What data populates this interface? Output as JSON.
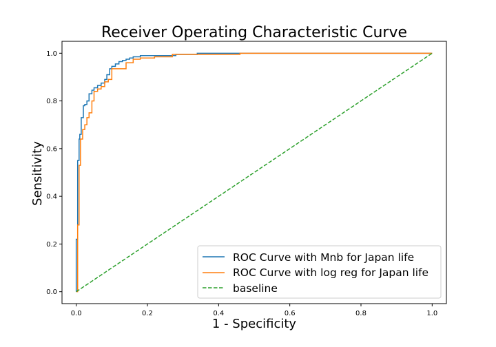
{
  "chart_data": {
    "type": "line",
    "title": "Receiver Operating Characteristic Curve",
    "xlabel": "1 - Specificity",
    "ylabel": "Sensitivity",
    "xlim": [
      -0.04,
      1.04
    ],
    "ylim": [
      -0.05,
      1.05
    ],
    "xticks": [
      0.0,
      0.2,
      0.4,
      0.6,
      0.8,
      1.0
    ],
    "xtick_labels": [
      "0.0",
      "0.2",
      "0.4",
      "0.6",
      "0.8",
      "1.0"
    ],
    "yticks": [
      0.0,
      0.2,
      0.4,
      0.6,
      0.8,
      1.0
    ],
    "ytick_labels": [
      "0.0",
      "0.2",
      "0.4",
      "0.6",
      "0.8",
      "1.0"
    ],
    "grid": false,
    "legend_position": "lower-right",
    "series": [
      {
        "name": "ROC Curve with Mnb for Japan life",
        "color": "#1f77b4",
        "dash": "solid",
        "x": [
          0.0,
          0.0,
          0.004,
          0.004,
          0.008,
          0.008,
          0.01,
          0.01,
          0.014,
          0.014,
          0.02,
          0.02,
          0.024,
          0.024,
          0.03,
          0.03,
          0.036,
          0.036,
          0.044,
          0.044,
          0.05,
          0.05,
          0.06,
          0.06,
          0.07,
          0.07,
          0.08,
          0.08,
          0.086,
          0.086,
          0.094,
          0.094,
          0.1,
          0.1,
          0.11,
          0.11,
          0.12,
          0.12,
          0.13,
          0.13,
          0.14,
          0.14,
          0.15,
          0.15,
          0.16,
          0.16,
          0.18,
          0.18,
          0.22,
          0.22,
          0.28,
          0.28,
          0.34,
          0.34,
          0.4,
          0.4,
          0.46,
          0.46,
          1.0
        ],
        "y": [
          0.0,
          0.22,
          0.22,
          0.55,
          0.55,
          0.64,
          0.64,
          0.66,
          0.66,
          0.73,
          0.73,
          0.78,
          0.78,
          0.785,
          0.785,
          0.8,
          0.8,
          0.83,
          0.83,
          0.845,
          0.845,
          0.855,
          0.855,
          0.865,
          0.865,
          0.875,
          0.875,
          0.89,
          0.89,
          0.91,
          0.91,
          0.935,
          0.935,
          0.945,
          0.945,
          0.955,
          0.955,
          0.965,
          0.965,
          0.97,
          0.97,
          0.975,
          0.975,
          0.98,
          0.98,
          0.985,
          0.985,
          0.99,
          0.99,
          0.99,
          0.99,
          0.995,
          0.995,
          1.0,
          1.0,
          1.0,
          1.0,
          1.0,
          1.0
        ]
      },
      {
        "name": "ROC Curve with log reg for Japan life",
        "color": "#ff7f0e",
        "dash": "solid",
        "x": [
          0.0,
          0.004,
          0.004,
          0.008,
          0.008,
          0.012,
          0.012,
          0.018,
          0.018,
          0.024,
          0.024,
          0.03,
          0.03,
          0.036,
          0.036,
          0.044,
          0.044,
          0.05,
          0.05,
          0.06,
          0.06,
          0.07,
          0.07,
          0.08,
          0.08,
          0.09,
          0.09,
          0.1,
          0.1,
          0.12,
          0.12,
          0.14,
          0.14,
          0.16,
          0.16,
          0.18,
          0.18,
          0.22,
          0.22,
          0.27,
          0.27,
          0.46,
          0.46,
          1.0
        ],
        "y": [
          0.0,
          0.0,
          0.28,
          0.28,
          0.53,
          0.53,
          0.64,
          0.64,
          0.68,
          0.68,
          0.7,
          0.7,
          0.73,
          0.73,
          0.75,
          0.75,
          0.8,
          0.8,
          0.84,
          0.84,
          0.85,
          0.85,
          0.86,
          0.86,
          0.88,
          0.88,
          0.89,
          0.89,
          0.935,
          0.935,
          0.935,
          0.935,
          0.96,
          0.96,
          0.975,
          0.975,
          0.98,
          0.98,
          0.985,
          0.985,
          0.995,
          0.995,
          1.0,
          1.0
        ]
      },
      {
        "name": "baseline",
        "color": "#2ca02c",
        "dash": "dashed",
        "x": [
          0.0,
          1.0
        ],
        "y": [
          0.0,
          1.0
        ]
      }
    ]
  }
}
